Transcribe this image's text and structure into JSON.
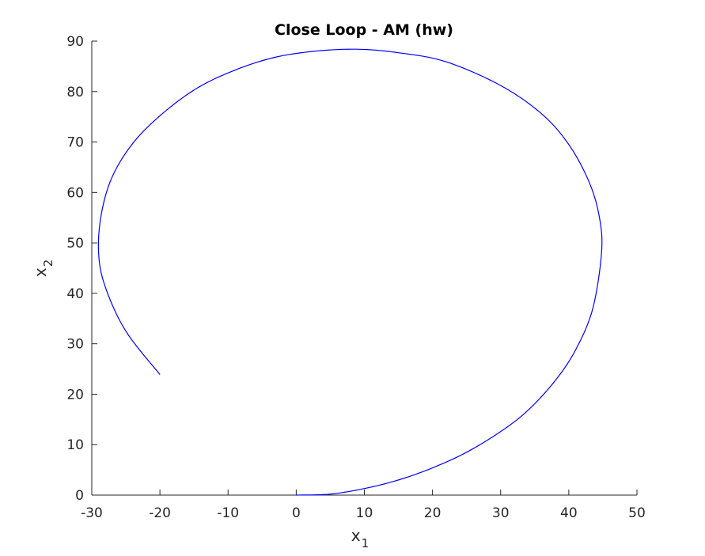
{
  "chart_data": {
    "type": "line",
    "title": "Close Loop - AM (hw)",
    "xlabel": "x",
    "xlabel_sub": "1",
    "ylabel": "x",
    "ylabel_sub": "2",
    "xlim": [
      -30,
      50
    ],
    "ylim": [
      0,
      90
    ],
    "xticks": [
      -30,
      -20,
      -10,
      0,
      10,
      20,
      30,
      40,
      50
    ],
    "yticks": [
      0,
      10,
      20,
      30,
      40,
      50,
      60,
      70,
      80,
      90
    ],
    "grid": false,
    "series": [
      {
        "color": "#0000ff",
        "x": [
          0,
          5,
          10,
          15,
          20,
          25,
          30,
          34,
          38,
          41,
          43.5,
          44.8,
          44.5,
          43,
          40,
          36,
          30,
          22,
          15,
          8.7,
          2,
          -4,
          -10,
          -15,
          -20,
          -24,
          -27,
          -28.6,
          -29,
          -28,
          -25,
          -20
        ],
        "y": [
          0,
          0.2,
          1.3,
          3,
          5.4,
          8.5,
          12.6,
          16.8,
          22.7,
          28.8,
          36.9,
          48,
          55,
          62,
          69.5,
          75.6,
          81.2,
          85.9,
          87.7,
          88.4,
          87.9,
          86.5,
          83.7,
          80.3,
          75.2,
          69.7,
          63.1,
          55.7,
          48,
          41.2,
          32.5,
          23.9
        ]
      }
    ]
  }
}
